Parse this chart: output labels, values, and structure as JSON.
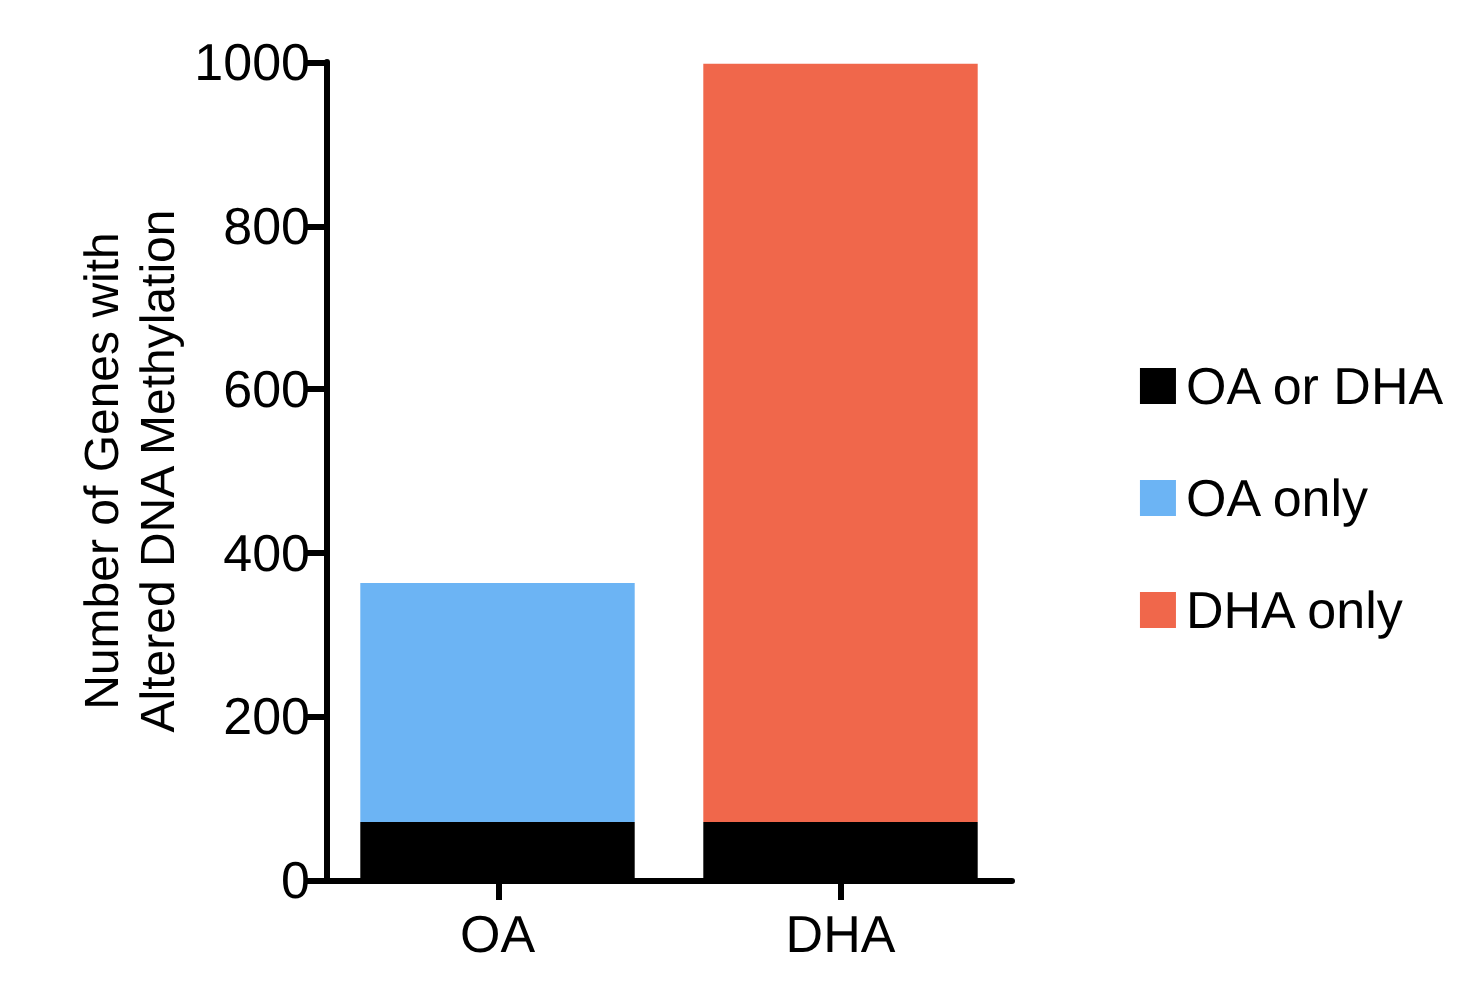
{
  "chart_data": {
    "type": "bar",
    "stacked": true,
    "ylabel": "Number of Genes with\nAltered DNA Methylation",
    "categories": [
      "OA",
      "DHA"
    ],
    "series": [
      {
        "name": "OA or DHA",
        "color": "#000000",
        "values": [
          71,
          71
        ]
      },
      {
        "name": "OA only",
        "color": "#6cb4f4",
        "values": [
          292,
          null
        ]
      },
      {
        "name": "DHA only",
        "color": "#f0674b",
        "values": [
          null,
          927
        ]
      }
    ],
    "ylim": [
      0,
      1000
    ],
    "yticks": [
      0,
      200,
      400,
      600,
      800,
      1000
    ],
    "grid": false,
    "legend": "right"
  }
}
